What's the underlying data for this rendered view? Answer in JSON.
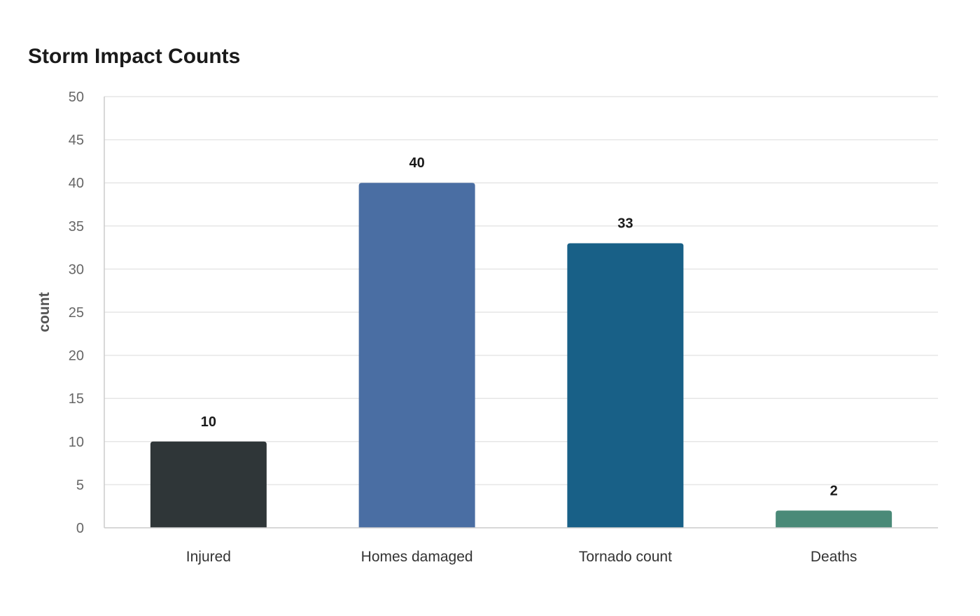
{
  "chart_data": {
    "type": "bar",
    "title": "Storm Impact Counts",
    "xlabel": "",
    "ylabel": "count",
    "categories": [
      "Injured",
      "Homes damaged",
      "Tornado count",
      "Deaths"
    ],
    "values": [
      10,
      40,
      33,
      2
    ],
    "data_labels": [
      "10",
      "40",
      "33",
      "2"
    ],
    "colors": [
      "#2f3638",
      "#4a6ea3",
      "#186087",
      "#4a8a78"
    ],
    "ylim": [
      0,
      50
    ],
    "yticks": [
      0,
      5,
      10,
      15,
      20,
      25,
      30,
      35,
      40,
      45,
      50
    ],
    "ytick_labels": [
      "0",
      "5",
      "10",
      "15",
      "20",
      "25",
      "30",
      "35",
      "40",
      "45",
      "50"
    ],
    "grid": true,
    "legend": "none"
  }
}
